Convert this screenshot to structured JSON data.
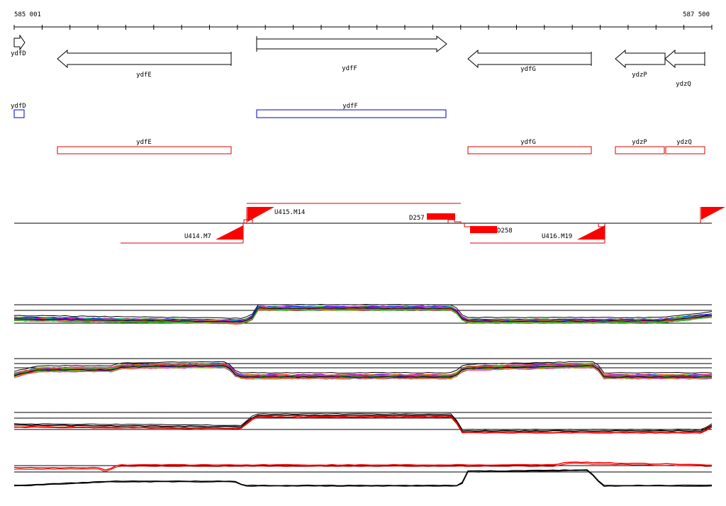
{
  "coordinates": {
    "start_label": "585 001",
    "end_label": "587 500"
  },
  "colors": {
    "ink": "#000000",
    "annotation_blue": "#0000cc",
    "annotation_red": "#dd0000",
    "feature_red": "#ff0000"
  },
  "genes": [
    {
      "name": "ydfD",
      "strand": "+"
    },
    {
      "name": "ydfE",
      "strand": "-"
    },
    {
      "name": "ydfF",
      "strand": "+"
    },
    {
      "name": "ydfG",
      "strand": "-"
    },
    {
      "name": "ydzP",
      "strand": "-"
    },
    {
      "name": "ydzQ",
      "strand": "-"
    }
  ],
  "blue_annotations": [
    "ydfD",
    "ydfF"
  ],
  "red_annotations": [
    "ydfE",
    "ydfG",
    "ydzP",
    "ydzQ"
  ],
  "transcription_units": [
    {
      "label": "U415.M14"
    },
    {
      "label": "U414.M7"
    },
    {
      "label": "U416.M19"
    }
  ],
  "deletion_features": [
    {
      "label": "D257"
    },
    {
      "label": "D258"
    }
  ],
  "expression_panels": [
    {
      "id": "panel-1",
      "style": "multicolor"
    },
    {
      "id": "panel-2",
      "style": "multicolor"
    },
    {
      "id": "panel-3",
      "style": "black-red"
    },
    {
      "id": "panel-4",
      "style": "red-black"
    }
  ]
}
